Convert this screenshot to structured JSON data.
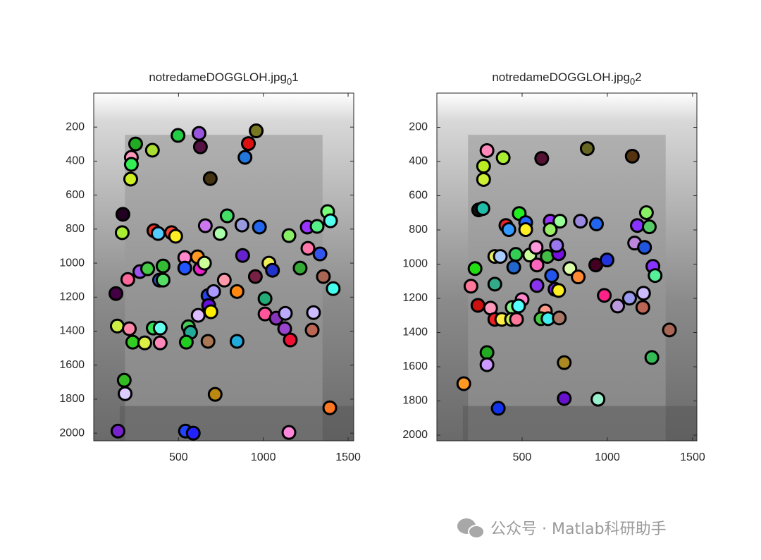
{
  "chart_data": [
    {
      "type": "scatter",
      "title": "notredameDOGGLOH.jpg",
      "title_subscript": "0",
      "title_suffix": "1",
      "y_reversed": true,
      "xlim": [
        0,
        1533
      ],
      "ylim": [
        0,
        2045
      ],
      "xticks": [
        500,
        1000,
        1500
      ],
      "yticks": [
        200,
        400,
        600,
        800,
        1000,
        1200,
        1400,
        1600,
        1800,
        2000
      ],
      "x": [
        247,
        222,
        222,
        218,
        346,
        497,
        621,
        629,
        687,
        958,
        912,
        892,
        172,
        168,
        355,
        380,
        459,
        483,
        658,
        787,
        745,
        874,
        977,
        1151,
        1259,
        1317,
        1379,
        1396,
        1263,
        1334,
        878,
        537,
        612,
        537,
        628,
        653,
        409,
        272,
        318,
        388,
        409,
        201,
        131,
        770,
        845,
        674,
        678,
        707,
        691,
        953,
        1033,
        1054,
        1217,
        1354,
        1412,
        1010,
        1010,
        1076,
        1130,
        1296,
        1126,
        1159,
        1288,
        616,
        558,
        571,
        546,
        674,
        845,
        139,
        210,
        230,
        301,
        392,
        351,
        392,
        180,
        185,
        716,
        1392,
        143,
        541,
        587,
        1151
      ],
      "y": [
        299,
        378,
        419,
        506,
        336,
        249,
        237,
        316,
        503,
        222,
        297,
        378,
        713,
        821,
        809,
        826,
        821,
        842,
        780,
        722,
        826,
        776,
        788,
        838,
        788,
        784,
        697,
        751,
        913,
        946,
        955,
        967,
        963,
        1029,
        1033,
        1000,
        1017,
        1050,
        1033,
        1100,
        1100,
        1096,
        1179,
        1100,
        1167,
        1191,
        1249,
        1167,
        1286,
        1079,
        1000,
        1042,
        1029,
        1079,
        1150,
        1209,
        1299,
        1324,
        1295,
        1291,
        1386,
        1452,
        1394,
        1307,
        1374,
        1407,
        1465,
        1460,
        1460,
        1370,
        1386,
        1465,
        1469,
        1469,
        1382,
        1382,
        1689,
        1768,
        1772,
        1851,
        1988,
        1988,
        2000,
        1996
      ],
      "colors": [
        "#22aa22",
        "#ff99bb",
        "#33ee55",
        "#ccee22",
        "#aadd33",
        "#22cc44",
        "#9955dd",
        "#551144",
        "#443311",
        "#777722",
        "#dd1111",
        "#2277dd",
        "#220022",
        "#aaee33",
        "#ee3322",
        "#55ccff",
        "#ff4433",
        "#ffee22",
        "#cc77ee",
        "#44dd66",
        "#aaffaa",
        "#9999dd",
        "#2266ee",
        "#88ee66",
        "#9933ff",
        "#55ee88",
        "#77ff77",
        "#55ffee",
        "#ff77aa",
        "#3355ee",
        "#6622cc",
        "#ff88cc",
        "#ff9922",
        "#2255ff",
        "#ee22cc",
        "#ccff99",
        "#33bb33",
        "#9955ee",
        "#44cc44",
        "#3355dd",
        "#55dd66",
        "#ff6699",
        "#440044",
        "#ff99aa",
        "#ff8811",
        "#2244ee",
        "#6611dd",
        "#aa99ff",
        "#ffee00",
        "#772244",
        "#eeee55",
        "#2233cc",
        "#33aa33",
        "#aa6655",
        "#44ffee",
        "#22aa77",
        "#ff5599",
        "#8833bb",
        "#bbaaff",
        "#ccbbff",
        "#9944cc",
        "#ee1133",
        "#bb6655",
        "#ddbbff",
        "#44cc55",
        "#22aa99",
        "#22cc22",
        "#aa7755",
        "#22aadd",
        "#ccee44",
        "#ff88aa",
        "#33cc22",
        "#ddee44",
        "#ff88bb",
        "#33dd55",
        "#66ffee",
        "#33bb22",
        "#ddccff",
        "#bb8811",
        "#ff7722",
        "#7722cc",
        "#2244ff",
        "#2222ff",
        "#ff88dd"
      ]
    },
    {
      "type": "scatter",
      "title": "notredameDOGGLOH.jpg",
      "title_subscript": "0",
      "title_suffix": "2",
      "y_reversed": true,
      "xlim": [
        0,
        1525
      ],
      "ylim": [
        0,
        2033
      ],
      "xticks": [
        500,
        1000,
        1500
      ],
      "yticks": [
        200,
        400,
        600,
        800,
        1000,
        1200,
        1400,
        1600,
        1800,
        2000
      ],
      "x": [
        294,
        389,
        615,
        882,
        1146,
        274,
        274,
        245,
        270,
        483,
        405,
        422,
        521,
        521,
        665,
        722,
        665,
        842,
        936,
        1229,
        1176,
        1246,
        1160,
        1218,
        1267,
        1280,
        340,
        372,
        463,
        545,
        582,
        648,
        714,
        702,
        224,
        200,
        340,
        451,
        587,
        673,
        587,
        780,
        829,
        932,
        998,
        982,
        693,
        714,
        500,
        442,
        479,
        636,
        241,
        315,
        340,
        381,
        438,
        467,
        611,
        652,
        718,
        1060,
        1130,
        1212,
        1208,
        1364,
        294,
        294,
        158,
        747,
        747,
        945,
        360,
        1261
      ],
      "y": [
        336,
        378,
        382,
        324,
        369,
        427,
        505,
        683,
        675,
        704,
        774,
        798,
        757,
        798,
        749,
        749,
        798,
        749,
        765,
        699,
        774,
        782,
        877,
        902,
        1013,
        1067,
        955,
        955,
        943,
        947,
        902,
        955,
        939,
        890,
        1026,
        1129,
        1117,
        1018,
        1005,
        1067,
        1125,
        1026,
        1075,
        1005,
        976,
        1183,
        1147,
        1154,
        1207,
        1253,
        1245,
        1274,
        1241,
        1257,
        1323,
        1323,
        1323,
        1323,
        1319,
        1319,
        1315,
        1245,
        1199,
        1170,
        1253,
        1385,
        1517,
        1588,
        1699,
        1576,
        1786,
        1790,
        1843,
        1546
      ],
      "colors": [
        "#ff88bb",
        "#aaee33",
        "#551133",
        "#666622",
        "#553311",
        "#bbee22",
        "#ccee33",
        "#111111",
        "#22bbaa",
        "#22ee22",
        "#ee2222",
        "#3399ff",
        "#2266ff",
        "#ffee22",
        "#9933ff",
        "#99ff99",
        "#99ee66",
        "#9988dd",
        "#2266ee",
        "#88ee66",
        "#8833ff",
        "#55cc66",
        "#bb88dd",
        "#2255dd",
        "#8833ff",
        "#55ee99",
        "#eeee66",
        "#aaccff",
        "#33cc55",
        "#ccff99",
        "#ff99dd",
        "#44bb44",
        "#7711dd",
        "#9977ee",
        "#22dd11",
        "#ff7799",
        "#33aa88",
        "#2266cc",
        "#ff66bb",
        "#2255ee",
        "#8833ee",
        "#ddffaa",
        "#ff8833",
        "#440022",
        "#2233dd",
        "#ff2288",
        "#7722ee",
        "#ffee22",
        "#ff88cc",
        "#88ee88",
        "#55ffff",
        "#ff9988",
        "#cc1111",
        "#ff99bb",
        "#ee2222",
        "#ffee44",
        "#ccee55",
        "#ff7799",
        "#44cc44",
        "#44eeee",
        "#aa7766",
        "#bb99dd",
        "#9999ee",
        "#ccbbff",
        "#bb6655",
        "#aa6655",
        "#22aa22",
        "#cc99ff",
        "#ff9922",
        "#aa8822",
        "#6611cc",
        "#99eecc",
        "#1133ee",
        "#33bb55"
      ]
    }
  ],
  "watermark": "公众号 · Matlab科研助手"
}
